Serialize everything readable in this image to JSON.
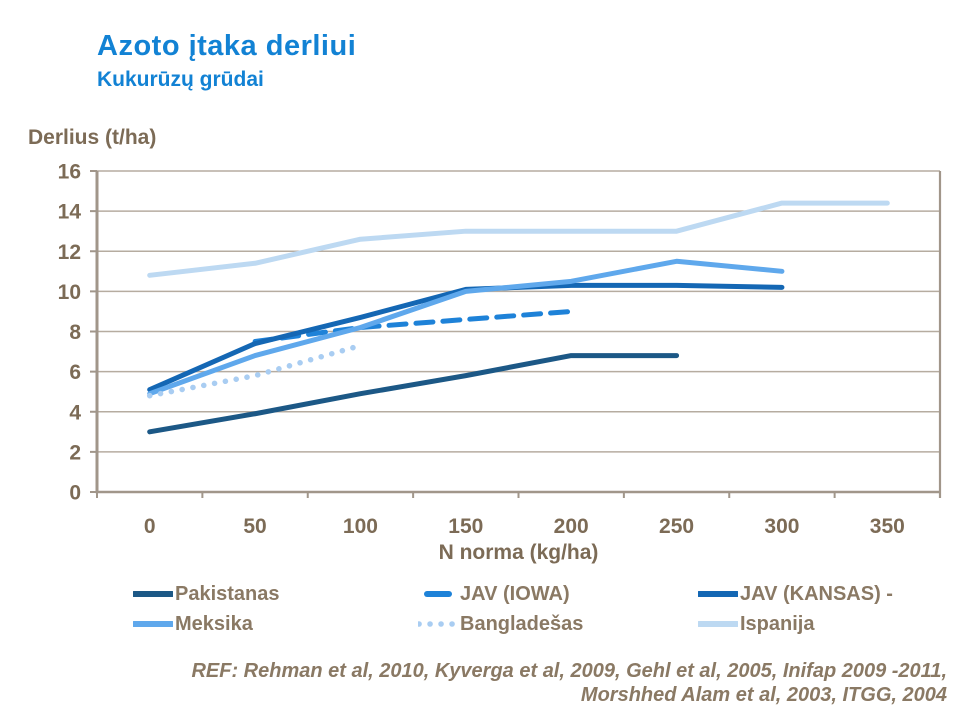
{
  "slide": {
    "title": "Azoto įtaka derliui",
    "subtitle": "Kukurūzų grūdai",
    "ref_line1": "REF: Rehman et al, 2010, Kyverga et al, 2009, Gehl et al, 2005, Inifap 2009 -2011,",
    "ref_line2": "Morshhed Alam et al, 2003, ITGG, 2004"
  },
  "colors": {
    "title_blue": "#1282D4",
    "axis": "#A1968A",
    "gridline": "#B6ACA0",
    "tick_text": "#7C6B56",
    "legend_text": "#8A7964",
    "ref_text": "#8A7964",
    "background": "#FFFFFF"
  },
  "chart_data": {
    "type": "line",
    "title": "",
    "xlabel": "N norma (kg/ha)",
    "ylabel": "Derlius (t/ha)",
    "categories": [
      0,
      50,
      100,
      150,
      200,
      250,
      300,
      350
    ],
    "xtick_labels": [
      "0",
      "50",
      "100",
      "150",
      "200",
      "250",
      "300",
      "350"
    ],
    "ytick_labels": [
      "0",
      "2",
      "4",
      "6",
      "8",
      "10",
      "12",
      "14",
      "16"
    ],
    "ylim": [
      0,
      16
    ],
    "ytick_step": 2,
    "grid": "horizontal",
    "legend_position": "bottom",
    "series": [
      {
        "name": "Pakistanas",
        "color": "#1C5886",
        "style": "solid",
        "x": [
          0,
          50,
          100,
          150,
          200,
          250
        ],
        "values": [
          3.0,
          3.9,
          4.9,
          5.8,
          6.8,
          6.8
        ]
      },
      {
        "name": "JAV (IOWA)",
        "color": "#1E82D8",
        "style": "dashed",
        "x": [
          50,
          100,
          150,
          200
        ],
        "values": [
          7.5,
          8.2,
          8.6,
          9.0
        ]
      },
      {
        "name": "JAV (KANSAS) -",
        "color": "#1467B4",
        "style": "solid",
        "x": [
          0,
          50,
          100,
          150,
          200,
          250,
          300
        ],
        "values": [
          5.1,
          7.4,
          8.7,
          10.1,
          10.3,
          10.3,
          10.2
        ]
      },
      {
        "name": "Meksika",
        "color": "#5FA8EC",
        "style": "solid",
        "x": [
          0,
          50,
          100,
          150,
          200,
          250,
          300
        ],
        "values": [
          4.9,
          6.8,
          8.2,
          10.0,
          10.5,
          11.5,
          11.0
        ]
      },
      {
        "name": "Bangladešas",
        "color": "#A9CDF2",
        "style": "dotted",
        "x": [
          0,
          50,
          100
        ],
        "values": [
          4.8,
          5.8,
          7.3
        ]
      },
      {
        "name": "Ispanija",
        "color": "#BDD9F2",
        "style": "solid",
        "x": [
          0,
          50,
          100,
          150,
          200,
          250,
          300,
          350
        ],
        "values": [
          10.8,
          11.4,
          12.6,
          13.0,
          13.0,
          13.0,
          14.4,
          14.4
        ]
      }
    ]
  }
}
